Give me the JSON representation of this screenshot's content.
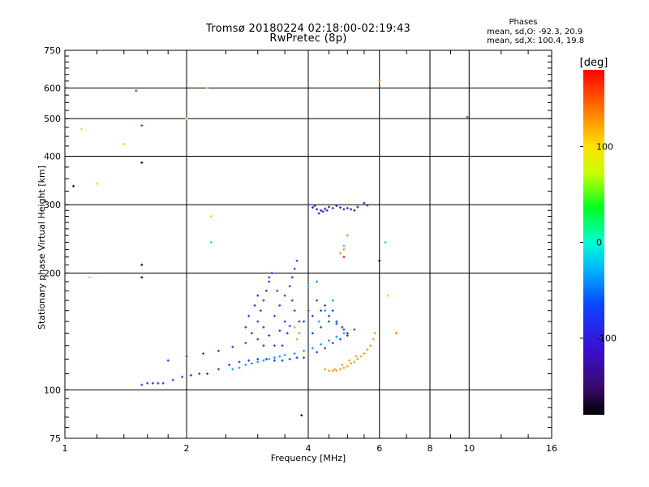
{
  "title": "Tromsø 20180224 02:18:00-02:19:43",
  "subtitle": "RwPretec (8p)",
  "annotation": {
    "heading": "Phases",
    "line1": "mean, sd,O: -92.3, 20.9",
    "line2": "mean, sd,X: 100.4, 19.8"
  },
  "colors": {
    "axis": "#000000",
    "background": "#ffffff"
  },
  "chart_data": {
    "type": "scatter",
    "xlabel": "Frequency [MHz]",
    "ylabel": "Stationary phase Virtual Height [km]",
    "xscale": "log",
    "yscale": "log",
    "xlim": [
      1,
      16
    ],
    "ylim": [
      75,
      750
    ],
    "grid": true,
    "xticks": [
      1,
      2,
      4,
      6,
      8,
      10,
      16
    ],
    "xtick_labels": [
      "1",
      "2",
      "4",
      "6",
      "8",
      "10",
      "16"
    ],
    "yticks": [
      75,
      100,
      200,
      300,
      400,
      500,
      600,
      750
    ],
    "ytick_labels": [
      "75",
      "100",
      "200",
      "300",
      "400",
      "500",
      "600",
      "750"
    ],
    "colorbar": {
      "title": "[deg]",
      "range": [
        -180,
        180
      ],
      "ticks": [
        100,
        0,
        -100
      ],
      "tick_labels": [
        "100",
        "0",
        "-100"
      ],
      "colormap": "rainbow"
    },
    "series": [
      {
        "phase": -100,
        "color": "#2a3cf0",
        "points": [
          [
            1.55,
            103
          ],
          [
            1.6,
            104
          ],
          [
            1.65,
            104
          ],
          [
            1.7,
            104
          ],
          [
            1.75,
            104
          ],
          [
            1.85,
            106
          ],
          [
            1.95,
            108
          ],
          [
            2.05,
            109
          ],
          [
            2.15,
            110
          ],
          [
            2.25,
            110
          ],
          [
            2.4,
            113
          ],
          [
            2.55,
            116
          ],
          [
            2.7,
            118
          ],
          [
            2.85,
            119
          ],
          [
            3.0,
            120
          ],
          [
            3.15,
            120
          ],
          [
            3.3,
            119
          ],
          [
            3.45,
            119
          ],
          [
            3.6,
            120
          ],
          [
            3.75,
            121
          ],
          [
            3.9,
            121
          ],
          [
            1.8,
            119
          ],
          [
            2.0,
            122
          ],
          [
            2.2,
            124
          ],
          [
            2.4,
            126
          ],
          [
            2.6,
            129
          ],
          [
            2.8,
            132
          ],
          [
            3.0,
            135
          ],
          [
            3.2,
            138
          ],
          [
            3.4,
            142
          ],
          [
            3.6,
            146
          ],
          [
            3.8,
            150
          ],
          [
            2.9,
            140
          ],
          [
            3.0,
            150
          ],
          [
            3.05,
            160
          ],
          [
            3.1,
            170
          ],
          [
            3.15,
            180
          ],
          [
            3.2,
            190
          ],
          [
            3.25,
            200
          ],
          [
            2.95,
            165
          ],
          [
            3.1,
            145
          ],
          [
            3.3,
            155
          ],
          [
            3.4,
            165
          ],
          [
            3.5,
            175
          ],
          [
            3.6,
            185
          ],
          [
            3.65,
            195
          ],
          [
            3.7,
            205
          ],
          [
            3.75,
            215
          ],
          [
            3.55,
            140
          ],
          [
            3.45,
            130
          ],
          [
            3.35,
            180
          ],
          [
            2.85,
            155
          ],
          [
            2.8,
            145
          ],
          [
            3.0,
            175
          ],
          [
            3.2,
            195
          ],
          [
            3.65,
            170
          ],
          [
            3.7,
            160
          ],
          [
            3.5,
            150
          ],
          [
            3.3,
            130
          ],
          [
            3.1,
            130
          ]
        ]
      },
      {
        "phase": -90,
        "color": "#1f4ae0",
        "points": [
          [
            4.2,
            125
          ],
          [
            4.4,
            128
          ],
          [
            4.6,
            132
          ],
          [
            4.8,
            135
          ],
          [
            5.0,
            138
          ],
          [
            5.2,
            143
          ],
          [
            4.1,
            140
          ],
          [
            4.3,
            145
          ],
          [
            4.5,
            150
          ],
          [
            4.7,
            148
          ],
          [
            4.9,
            143
          ],
          [
            4.0,
            160
          ],
          [
            4.2,
            170
          ],
          [
            4.4,
            165
          ],
          [
            4.6,
            160
          ],
          [
            3.9,
            150
          ],
          [
            4.1,
            155
          ],
          [
            4.3,
            160
          ],
          [
            4.5,
            155
          ],
          [
            4.7,
            150
          ],
          [
            4.85,
            145
          ],
          [
            5.0,
            140
          ]
        ]
      },
      {
        "phase": -60,
        "color": "#14a0e8",
        "points": [
          [
            2.6,
            113
          ],
          [
            2.7,
            114
          ],
          [
            2.8,
            116
          ],
          [
            2.9,
            117
          ],
          [
            3.0,
            118
          ],
          [
            3.1,
            119
          ],
          [
            3.2,
            120
          ],
          [
            3.3,
            121
          ],
          [
            3.4,
            122
          ],
          [
            3.5,
            123
          ],
          [
            3.7,
            124
          ],
          [
            3.9,
            126
          ],
          [
            4.1,
            128
          ],
          [
            4.3,
            131
          ],
          [
            4.5,
            134
          ],
          [
            4.7,
            137
          ],
          [
            4.9,
            140
          ],
          [
            4.25,
            150
          ],
          [
            4.4,
            160
          ],
          [
            4.6,
            170
          ],
          [
            4.0,
            185
          ],
          [
            4.2,
            190
          ]
        ]
      },
      {
        "phase": -120,
        "color": "#3a1fb8",
        "points": [
          [
            4.0,
            300
          ],
          [
            4.1,
            295
          ],
          [
            4.2,
            292
          ],
          [
            4.3,
            290
          ],
          [
            4.4,
            293
          ],
          [
            4.5,
            296
          ],
          [
            4.6,
            294
          ],
          [
            4.7,
            298
          ],
          [
            4.8,
            295
          ],
          [
            4.9,
            292
          ],
          [
            5.0,
            294
          ],
          [
            5.1,
            292
          ],
          [
            5.2,
            290
          ],
          [
            5.3,
            296
          ],
          [
            5.5,
            303
          ],
          [
            5.6,
            299
          ],
          [
            4.25,
            285
          ],
          [
            4.35,
            288
          ],
          [
            4.15,
            298
          ],
          [
            4.45,
            290
          ]
        ]
      },
      {
        "phase": 100,
        "color": "#f0a020",
        "points": [
          [
            4.4,
            113
          ],
          [
            4.5,
            112
          ],
          [
            4.6,
            112
          ],
          [
            4.7,
            112
          ],
          [
            4.8,
            113
          ],
          [
            4.9,
            114
          ],
          [
            5.0,
            115
          ],
          [
            5.1,
            117
          ],
          [
            5.2,
            118
          ],
          [
            5.3,
            120
          ],
          [
            5.4,
            122
          ],
          [
            5.5,
            124
          ],
          [
            5.6,
            127
          ],
          [
            5.7,
            130
          ],
          [
            5.8,
            135
          ],
          [
            5.85,
            140
          ],
          [
            4.65,
            113
          ],
          [
            4.85,
            116
          ],
          [
            5.05,
            119
          ],
          [
            5.25,
            122
          ],
          [
            3.75,
            135
          ],
          [
            3.8,
            140
          ],
          [
            3.7,
            145
          ],
          [
            4.8,
            225
          ],
          [
            4.9,
            230
          ]
        ]
      },
      {
        "phase": 120,
        "color": "#f0d21e",
        "points": [
          [
            1.2,
            340
          ],
          [
            1.1,
            470
          ],
          [
            1.4,
            430
          ],
          [
            2.25,
            600
          ],
          [
            2.0,
            500
          ],
          [
            2.3,
            280
          ],
          [
            1.15,
            195
          ],
          [
            6.3,
            175
          ]
        ]
      },
      {
        "phase": 140,
        "color": "#ff7a1a",
        "points": [
          [
            6.0,
            625
          ],
          [
            6.6,
            140
          ],
          [
            5.0,
            250
          ]
        ]
      },
      {
        "phase": 170,
        "color": "#e8221c",
        "points": [
          [
            1.55,
            480
          ],
          [
            9.9,
            505
          ],
          [
            4.9,
            220
          ],
          [
            1.5,
            590
          ]
        ]
      },
      {
        "phase": -20,
        "color": "#20d2d8",
        "points": [
          [
            6.2,
            240
          ],
          [
            2.3,
            240
          ],
          [
            4.9,
            235
          ]
        ]
      },
      {
        "phase": -150,
        "color": "#1a0a40",
        "points": [
          [
            1.55,
            385
          ],
          [
            1.05,
            335
          ],
          [
            1.55,
            210
          ],
          [
            3.85,
            86
          ],
          [
            6.0,
            215
          ],
          [
            1.55,
            195
          ]
        ]
      }
    ]
  }
}
